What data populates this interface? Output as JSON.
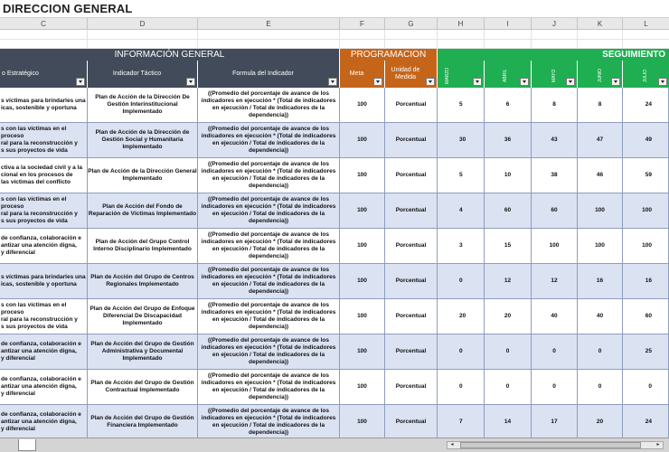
{
  "title": "DIRECCION GENERAL",
  "columns": [
    "C",
    "D",
    "E",
    "F",
    "G",
    "H",
    "I",
    "J",
    "K",
    "L"
  ],
  "sections": {
    "info": "INFORMACIÓN GENERAL",
    "prog": "PROGRAMACION",
    "seg": "SEGUIMIENTO"
  },
  "headers": {
    "objetivo": "o Estratégico",
    "indicador": "Indicador Táctico",
    "formula": "Formula del Indicador",
    "meta": "Meta",
    "unidad": "Unidad de Medida",
    "months": [
      "MARZO",
      "ABRIL",
      "MAYO",
      "JUNIO",
      "JULIO"
    ]
  },
  "colors": {
    "dark_header": "#414b59",
    "orange": "#c5651a",
    "green": "#1fae51",
    "row_alt": "#dbe2f2"
  },
  "rows": [
    {
      "obj": "s víctimas para brindarles una\nicas, sostenible y oportuna",
      "ind": "Plan de Acción de la Dirección De Gestión Interinstitucional Implementado",
      "formula": "((Promedio del porcentaje de avance de los indicadores en ejecución * (Total de indicadores en ejecución / Total de indicadores de la dependencia))",
      "meta": "100",
      "unidad": "Porcentual",
      "vals": [
        "5",
        "6",
        "8",
        "8",
        "24"
      ]
    },
    {
      "obj": "s con las víctimas en el proceso\nral para la reconstrucción y\ns sus proyectos de vida",
      "ind": "Plan de Acción de la Dirección de Gestión Social y Humanitaria Implementado",
      "formula": "((Promedio del porcentaje de avance de los indicadores en ejecución * (Total de indicadores en ejecución / Total de indicadores de la dependencia))",
      "meta": "100",
      "unidad": "Porcentual",
      "vals": [
        "30",
        "36",
        "43",
        "47",
        "49"
      ]
    },
    {
      "obj": "ctiva a la sociedad civil y a la\ncional en los procesos de\nlas víctimas del conflicto",
      "ind": "Plan de Acción de la Dirección General Implementado",
      "formula": "((Promedio del porcentaje de avance de los indicadores en ejecución * (Total de indicadores en ejecución / Total de indicadores de la dependencia))",
      "meta": "100",
      "unidad": "Porcentual",
      "vals": [
        "5",
        "10",
        "38",
        "46",
        "59"
      ]
    },
    {
      "obj": "s con las víctimas en el proceso\nral para la reconstrucción y\ns sus proyectos de vida",
      "ind": "Plan de Acción del Fondo de Reparación de Víctimas Implementado",
      "formula": "((Promedio del porcentaje de avance de los indicadores en ejecución * (Total de indicadores en ejecución / Total de indicadores de la dependencia))",
      "meta": "100",
      "unidad": "Porcentual",
      "vals": [
        "4",
        "60",
        "60",
        "100",
        "100"
      ]
    },
    {
      "obj": "de confianza, colaboración e\nantizar una atención digna,\ny diferencial",
      "ind": "Plan de Acción del Grupo Control Interno Disciplinario Implementado",
      "formula": "((Promedio del porcentaje de avance de los indicadores en ejecución * (Total de indicadores en ejecución / Total de indicadores de la dependencia))",
      "meta": "100",
      "unidad": "Porcentual",
      "vals": [
        "3",
        "15",
        "100",
        "100",
        "100"
      ]
    },
    {
      "obj": "s víctimas para brindarles una\nicas, sostenible y oportuna",
      "ind": "Plan de Acción del Grupo de Centros Regionales Implementado",
      "formula": "((Promedio del porcentaje de avance de los indicadores en ejecución * (Total de indicadores en ejecución / Total de indicadores de la dependencia))",
      "meta": "100",
      "unidad": "Porcentual",
      "vals": [
        "0",
        "12",
        "12",
        "16",
        "16"
      ]
    },
    {
      "obj": "s con las víctimas en el proceso\nral para la reconstrucción y\ns sus proyectos de vida",
      "ind": "Plan de Acción del Grupo de Enfoque Diferencial De Discapacidad Implementado",
      "formula": "((Promedio del porcentaje de avance de los indicadores en ejecución * (Total de indicadores en ejecución / Total de indicadores de la dependencia))",
      "meta": "100",
      "unidad": "Porcentual",
      "vals": [
        "20",
        "20",
        "40",
        "40",
        "60"
      ]
    },
    {
      "obj": "de confianza, colaboración e\nantizar una atención digna,\ny diferencial",
      "ind": "Plan de Acción del Grupo de Gestión Administrativa y Documental Implementado",
      "formula": "((Promedio del porcentaje de avance de los indicadores en ejecución * (Total de indicadores en ejecución / Total de indicadores de la dependencia))",
      "meta": "100",
      "unidad": "Porcentual",
      "vals": [
        "0",
        "0",
        "0",
        "0",
        "25"
      ]
    },
    {
      "obj": "de confianza, colaboración e\nantizar una atención digna,\ny diferencial",
      "ind": "Plan de Acción del Grupo de Gestión Contractual Implementado",
      "formula": "((Promedio del porcentaje de avance de los indicadores en ejecución * (Total de indicadores en ejecución / Total de indicadores de la dependencia))",
      "meta": "100",
      "unidad": "Porcentual",
      "vals": [
        "0",
        "0",
        "0",
        "0",
        "0"
      ]
    },
    {
      "obj": "de confianza, colaboración e\nantizar una atención digna,\ny diferencial",
      "ind": "Plan de Acción del Grupo de Gestión Financiera Implementado",
      "formula": "((Promedio del porcentaje de avance de los indicadores en ejecución * (Total de indicadores en ejecución / Total de indicadores de la dependencia))",
      "meta": "100",
      "unidad": "Porcentual",
      "vals": [
        "7",
        "14",
        "17",
        "20",
        "24"
      ]
    }
  ]
}
